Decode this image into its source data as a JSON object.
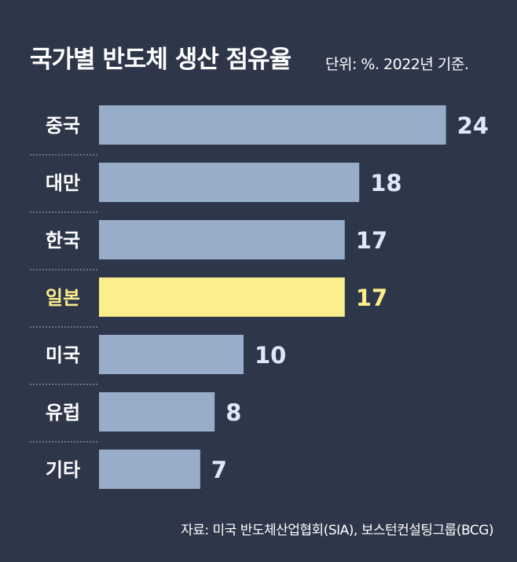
{
  "chart_data": {
    "type": "bar",
    "orientation": "horizontal",
    "title": "국가별 반도체 생산 점유율",
    "subtitle": "단위: %. 2022년 기준.",
    "source": "자료: 미국 반도체산업협회(SIA), 보스턴컨설팅그룹(BCG)",
    "categories": [
      "중국",
      "대만",
      "한국",
      "일본",
      "미국",
      "유럽",
      "기타"
    ],
    "values": [
      24,
      18,
      17,
      17,
      10,
      8,
      7
    ],
    "highlight": "일본",
    "colors": {
      "background": "#2e3649",
      "bar": "#97adc9",
      "bar_highlight": "#fbee8c",
      "label": "#ffffff",
      "value": "#dde9f9",
      "label_highlight": "#fbee8c",
      "divider": "#aab4c4"
    }
  }
}
